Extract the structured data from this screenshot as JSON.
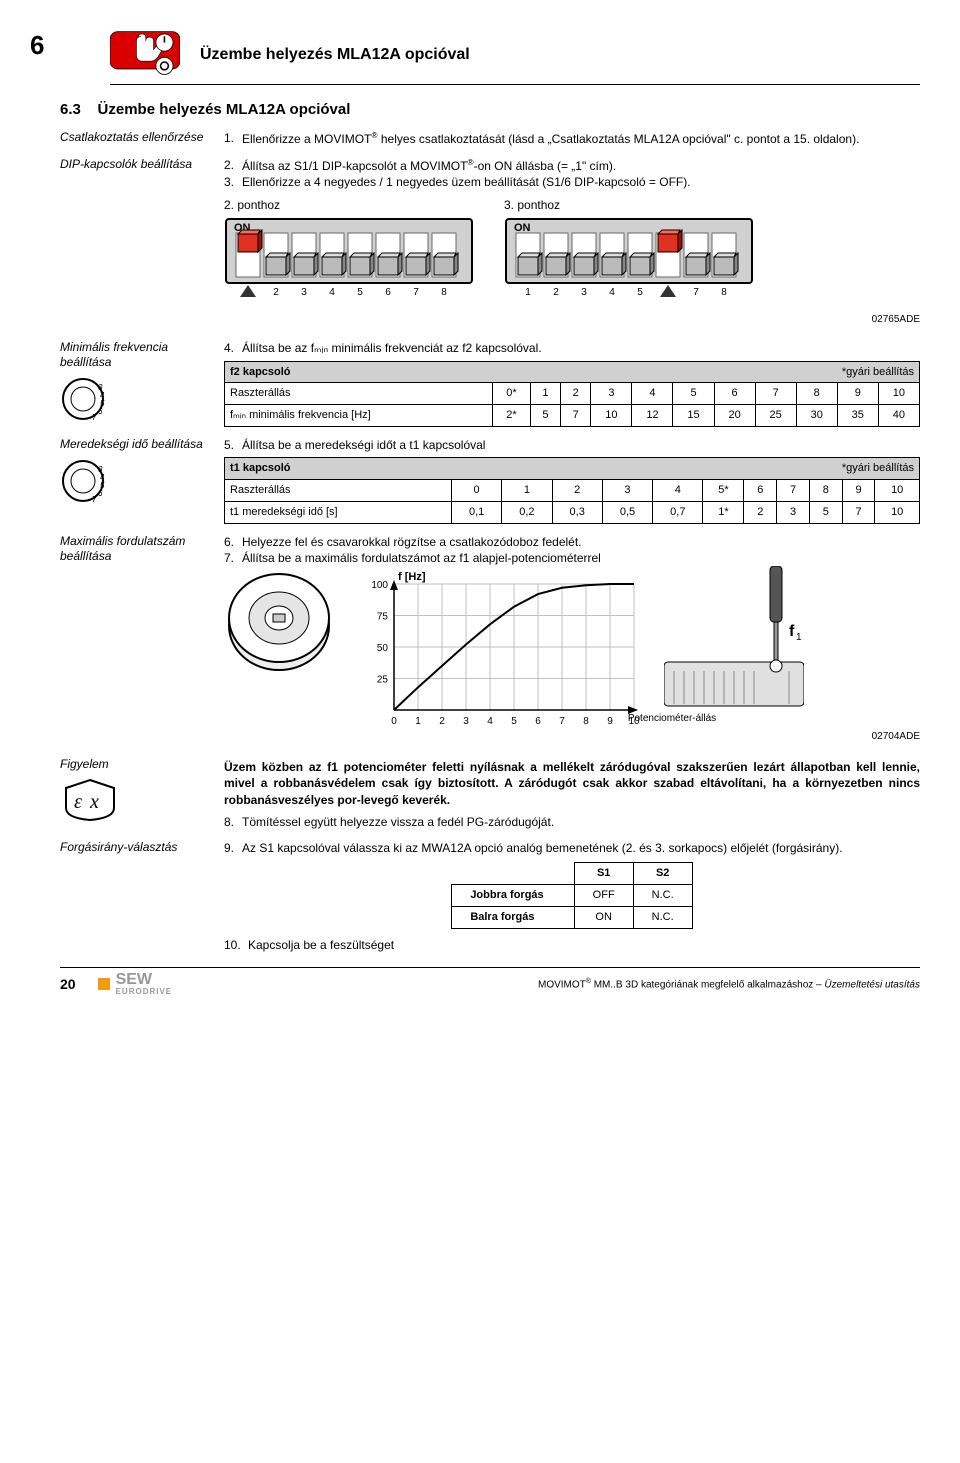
{
  "pageNumberTop": "6",
  "header": {
    "title": "Üzembe helyezés MLA12A opcióval"
  },
  "section": {
    "number": "6.3",
    "title": "Üzembe helyezés MLA12A opcióval"
  },
  "side": {
    "csatlakoztatas": "Csatlakoztatás ellenőrzése",
    "dip": "DIP-kapcsolók beállítása",
    "minfreq": "Minimális frekvencia beállítása",
    "ramp": "Meredekségi idő beállítása",
    "maxrpm": "Maximális fordulatszám beállítása",
    "figyelem": "Figyelem",
    "forgasirany": "Forgásirány-választás"
  },
  "step1": {
    "num": "1.",
    "text_a": "Ellenőrizze a MOVIMOT",
    "text_b": " helyes csatlakoztatását (lásd a „Csatlakoztatás MLA12A opcióval\" c. pontot a 15. oldalon)."
  },
  "step2": {
    "num": "2.",
    "text_a": "Állítsa az S1/1 DIP-kapcsolót a MOVIMOT",
    "text_b": "-on ON állásba (= „1\" cím)."
  },
  "step3": {
    "num": "3.",
    "text": "Ellenőrizze a 4 negyedes / 1 negyedes üzem beállítását (S1/6 DIP-kapcsoló = OFF)."
  },
  "dipCaptions": {
    "left": "2. ponthoz",
    "right": "3. ponthoz"
  },
  "dipFigureCode": "02765ADE",
  "dip": {
    "on_label": "ON",
    "numbers": [
      "1",
      "2",
      "3",
      "4",
      "5",
      "6",
      "7",
      "8"
    ],
    "colors": {
      "body": "#d0d0d0",
      "border": "#000000",
      "switch_bg": "#ffffff",
      "switch_outline": "#666666",
      "red": "#e03020",
      "arrow": "#333333",
      "text": "#000000"
    },
    "left_red_index": 0,
    "right_red_index": 5
  },
  "step4": {
    "num": "4.",
    "text": "Állítsa be az fₘᵢₙ minimális frekvenciát az f2 kapcsolóval."
  },
  "f2Table": {
    "title": "f2 kapcsoló",
    "note": "*gyári beállítás",
    "rowLabels": {
      "r1": "Raszterállás",
      "r2": "fₘᵢₙ minimális frekvencia [Hz]"
    },
    "r1": [
      "0*",
      "1",
      "2",
      "3",
      "4",
      "5",
      "6",
      "7",
      "8",
      "9",
      "10"
    ],
    "r2": [
      "2*",
      "5",
      "7",
      "10",
      "12",
      "15",
      "20",
      "25",
      "30",
      "35",
      "40"
    ]
  },
  "step5": {
    "num": "5.",
    "text": "Állítsa be a meredekségi időt a t1 kapcsolóval"
  },
  "t1Table": {
    "title": "t1 kapcsoló",
    "note": "*gyári beállítás",
    "rowLabels": {
      "r1": "Raszterállás",
      "r2": "t1 meredekségi idő [s]"
    },
    "r1": [
      "0",
      "1",
      "2",
      "3",
      "4",
      "5*",
      "6",
      "7",
      "8",
      "9",
      "10"
    ],
    "r2": [
      "0,1",
      "0,2",
      "0,3",
      "0,5",
      "0,7",
      "1*",
      "2",
      "3",
      "5",
      "7",
      "10"
    ]
  },
  "step6": {
    "num": "6.",
    "text": "Helyezze fel és csavarokkal rögzítse a csatlakozódoboz fedelét."
  },
  "step7": {
    "num": "7.",
    "text": "Állítsa be a maximális fordulatszámot az f1 alapjel-potenciométerrel"
  },
  "chart": {
    "ylabel": "f [Hz]",
    "yticks": [
      "100",
      "75",
      "50",
      "25"
    ],
    "xticks": [
      "0",
      "1",
      "2",
      "3",
      "4",
      "5",
      "6",
      "7",
      "8",
      "9",
      "10"
    ],
    "potLabel": "Potenciométer-állás",
    "f1Label": "f₁",
    "code": "02704ADE",
    "line_points": [
      [
        0,
        0
      ],
      [
        1,
        18
      ],
      [
        2,
        35
      ],
      [
        3,
        52
      ],
      [
        4,
        68
      ],
      [
        5,
        82
      ],
      [
        6,
        92
      ],
      [
        7,
        97
      ],
      [
        8,
        99
      ],
      [
        9,
        100
      ],
      [
        10,
        100
      ]
    ],
    "colors": {
      "axis": "#000000",
      "grid": "#bfbfbf",
      "line": "#000000",
      "bg": "#ffffff"
    },
    "xlim": [
      0,
      10
    ],
    "ylim": [
      0,
      100
    ]
  },
  "figyelemText": {
    "p1": "Üzem közben az f1 potenciométer feletti nyílásnak a mellékelt záródugóval szakszerűen lezárt állapotban kell lennie, mivel a robbanásvédelem csak így biztosított. A záródugót csak akkor szabad eltávolítani, ha a környezetben nincs robbanásveszélyes por-levegő keverék."
  },
  "step8": {
    "num": "8.",
    "text": "Tömítéssel együtt helyezze vissza a fedél PG-záródugóját."
  },
  "step9": {
    "num": "9.",
    "text": "Az S1 kapcsolóval válassza ki az MWA12A opció analóg bemenetének (2. és 3. sorkapocs) előjelét (forgásirány)."
  },
  "sTable": {
    "headers": [
      "",
      "S1",
      "S2"
    ],
    "rows": [
      {
        "label": "Jobbra forgás",
        "s1": "OFF",
        "s2": "N.C."
      },
      {
        "label": "Balra forgás",
        "s1": "ON",
        "s2": "N.C."
      }
    ]
  },
  "step10": {
    "num": "10.",
    "text": "Kapcsolja be a feszültséget"
  },
  "footer": {
    "pageNum": "20",
    "logo": "SEW",
    "logoSub": "EURODRIVE",
    "text_a": "MOVIMOT",
    "text_b": " MM..B 3D kategóriának megfelelő alkalmazáshoz – ",
    "text_c": "Üzemeltetési utasítás"
  }
}
